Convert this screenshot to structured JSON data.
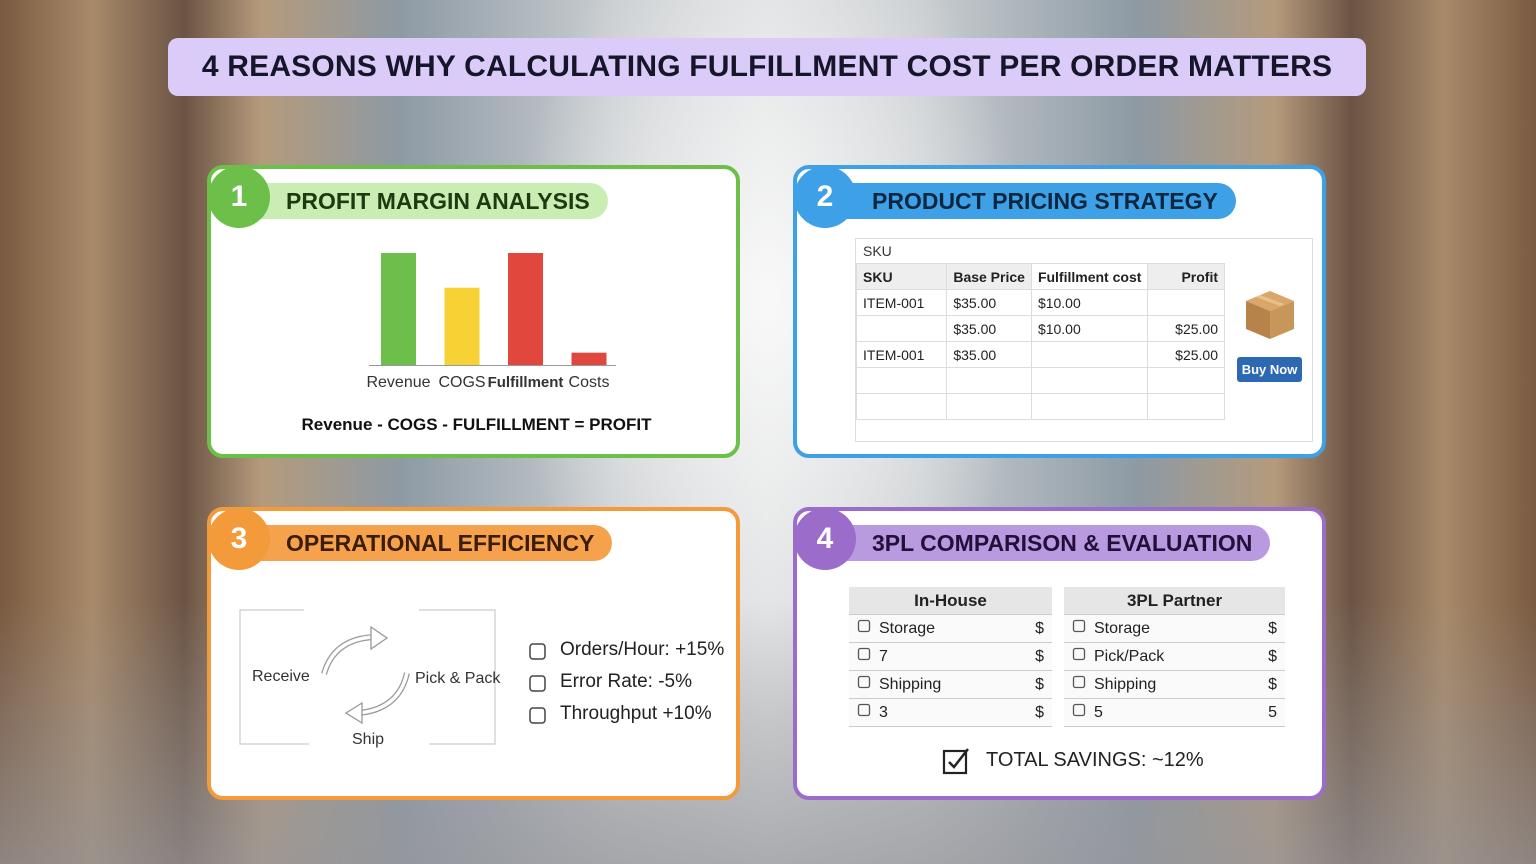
{
  "title": "4 REASONS WHY CALCULATING FULFILLMENT COST PER ORDER MATTERS",
  "cards": [
    {
      "number": "1",
      "heading": "PROFIT MARGIN ANALYSIS",
      "chart": {
        "type": "bar",
        "categories": [
          "Revenue",
          "COGS",
          "Fulfillment",
          "Costs"
        ],
        "values": [
          100,
          69,
          100,
          11
        ],
        "colors": [
          "#6dbf4b",
          "#f7d234",
          "#e2473d",
          "#e2473d"
        ],
        "ylim": [
          0,
          100
        ]
      },
      "formula": "Revenue - COGS - FULFILLMENT = PROFIT"
    },
    {
      "number": "2",
      "heading": "PRODUCT PRICING STRATEGY",
      "table": {
        "caption": "SKU",
        "columns": [
          "SKU",
          "Base Price",
          "Fulfillment cost",
          "Profit"
        ],
        "rows": [
          [
            "ITEM-001",
            "$35.00",
            "$10.00",
            null
          ],
          [
            null,
            "$35.00",
            "$10.00",
            "$25.00"
          ],
          [
            "ITEM-001",
            "$35.00",
            null,
            "$25.00"
          ]
        ]
      },
      "button": "Buy Now"
    },
    {
      "number": "3",
      "heading": "OPERATIONAL EFFICIENCY",
      "cycle": [
        "Receive",
        "Pick & Pack",
        "Ship"
      ],
      "metrics": [
        "Orders/Hour: +15%",
        "Error Rate: -5%",
        "Throughput +10%"
      ]
    },
    {
      "number": "4",
      "heading": "3PL COMPARISON & EVALUATION",
      "panels": [
        {
          "title": "In-House",
          "rows": [
            [
              "Storage",
              "$"
            ],
            [
              "7",
              "$"
            ],
            [
              "Shipping",
              "$"
            ],
            [
              "3",
              "$"
            ]
          ]
        },
        {
          "title": "3PL Partner",
          "rows": [
            [
              "Storage",
              "$"
            ],
            [
              "Pick/Pack",
              "$"
            ],
            [
              "Shipping",
              "$"
            ],
            [
              "5",
              "5"
            ]
          ]
        }
      ],
      "total": "TOTAL SAVINGS: ~12%"
    }
  ]
}
